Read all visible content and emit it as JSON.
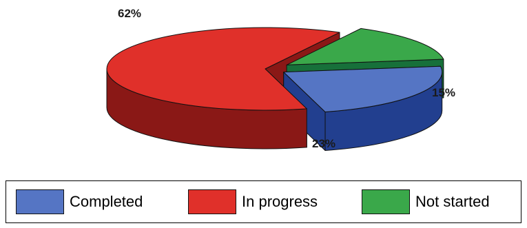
{
  "chart_data": {
    "type": "pie",
    "categories": [
      "Completed",
      "In progress",
      "Not started"
    ],
    "values": [
      23,
      62,
      15
    ],
    "labels": [
      "23%",
      "62%",
      "15%"
    ],
    "colors": {
      "Completed": {
        "top": "#5575c4",
        "side": "#223f8f"
      },
      "In progress": {
        "top": "#e0302a",
        "side": "#8a1816"
      },
      "Not started": {
        "top": "#3aa84a",
        "side": "#17703a"
      }
    },
    "legend_position": "bottom",
    "exploded": true,
    "three_d": true
  },
  "legend": {
    "items": [
      {
        "label": "Completed",
        "color": "#5575c4"
      },
      {
        "label": "In progress",
        "color": "#e0302a"
      },
      {
        "label": "Not started",
        "color": "#3aa84a"
      }
    ]
  }
}
